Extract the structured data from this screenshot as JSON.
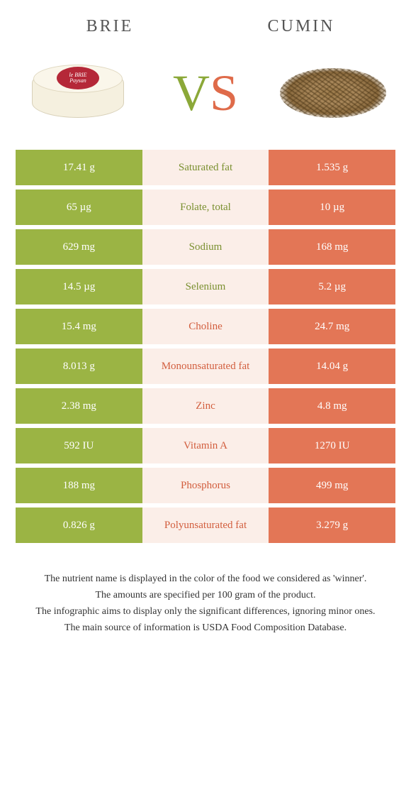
{
  "header": {
    "left": "BRIE",
    "right": "CUMIN"
  },
  "brie_label": {
    "line1": "le BRIE",
    "line2": "Paysan"
  },
  "vs": {
    "v": "V",
    "s": "S"
  },
  "colors": {
    "left_bg": "#9bb444",
    "right_bg": "#e37656",
    "mid_bg": "#fbeee8",
    "label_left": "#7a9030",
    "label_right": "#d25e3e"
  },
  "rows": [
    {
      "left": "17.41 g",
      "label": "Saturated fat",
      "right": "1.535 g",
      "winner": "left"
    },
    {
      "left": "65 µg",
      "label": "Folate, total",
      "right": "10 µg",
      "winner": "left"
    },
    {
      "left": "629 mg",
      "label": "Sodium",
      "right": "168 mg",
      "winner": "left"
    },
    {
      "left": "14.5 µg",
      "label": "Selenium",
      "right": "5.2 µg",
      "winner": "left"
    },
    {
      "left": "15.4 mg",
      "label": "Choline",
      "right": "24.7 mg",
      "winner": "right"
    },
    {
      "left": "8.013 g",
      "label": "Monounsaturated fat",
      "right": "14.04 g",
      "winner": "right"
    },
    {
      "left": "2.38 mg",
      "label": "Zinc",
      "right": "4.8 mg",
      "winner": "right"
    },
    {
      "left": "592 IU",
      "label": "Vitamin A",
      "right": "1270 IU",
      "winner": "right"
    },
    {
      "left": "188 mg",
      "label": "Phosphorus",
      "right": "499 mg",
      "winner": "right"
    },
    {
      "left": "0.826 g",
      "label": "Polyunsaturated fat",
      "right": "3.279 g",
      "winner": "right"
    }
  ],
  "footer": {
    "l1": "The nutrient name is displayed in the color of the food we considered as 'winner'.",
    "l2": "The amounts are specified per 100 gram of the product.",
    "l3": "The infographic aims to display only the significant differences, ignoring minor ones.",
    "l4": "The main source of information is USDA Food Composition Database."
  }
}
